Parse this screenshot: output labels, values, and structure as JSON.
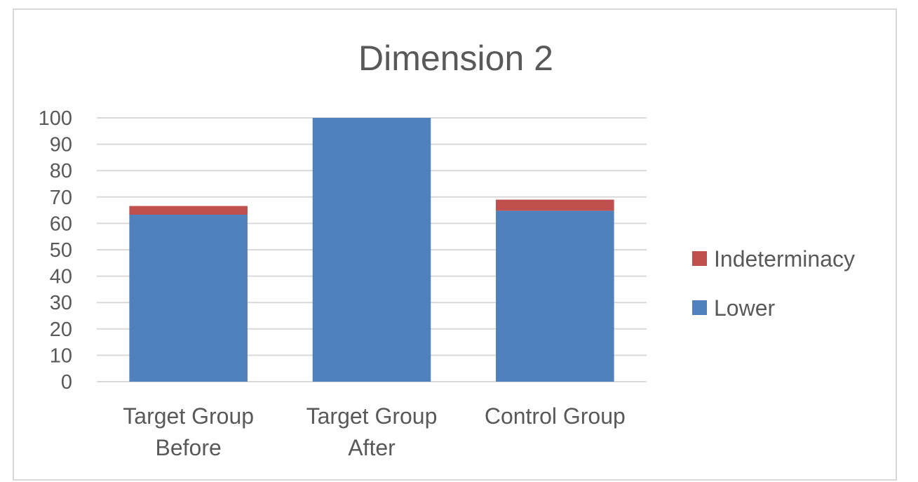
{
  "chart_data": {
    "type": "bar",
    "stacked": true,
    "title": "Dimension 2",
    "xlabel": "",
    "ylabel": "",
    "ylim": [
      0,
      100
    ],
    "yticks": [
      0,
      10,
      20,
      30,
      40,
      50,
      60,
      70,
      80,
      90,
      100
    ],
    "categories": [
      [
        "Target Group",
        "Before"
      ],
      [
        "Target Group",
        "After"
      ],
      [
        "Control Group"
      ]
    ],
    "series": [
      {
        "name": "Lower",
        "color": "#4f81bd",
        "values": [
          63.3,
          100,
          64.8
        ]
      },
      {
        "name": "Indeterminacy",
        "color": "#c0504d",
        "values": [
          3.3,
          0,
          4.2
        ]
      }
    ],
    "legend": {
      "position": "right",
      "order": [
        "Indeterminacy",
        "Lower"
      ]
    },
    "grid": true,
    "gridline_color": "#d9d9d9",
    "text_color": "#595959"
  }
}
